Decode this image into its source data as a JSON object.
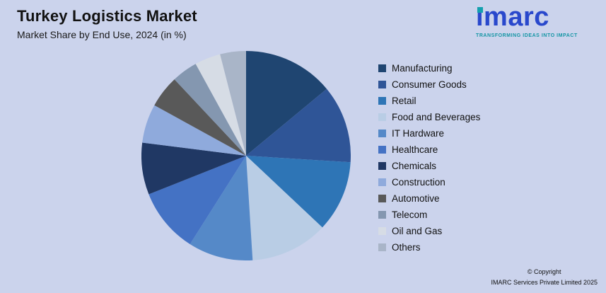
{
  "header": {
    "title": "Turkey Logistics Market",
    "subtitle": "Market Share by End Use, 2024 (in %)"
  },
  "logo": {
    "text": "imarc",
    "tagline": "TRANSFORMING IDEAS INTO IMPACT",
    "brand_blue": "#2948CC",
    "brand_teal": "#14A0AE"
  },
  "chart_data": {
    "type": "pie",
    "title": "Turkey Logistics Market",
    "subtitle": "Market Share by End Use, 2024 (in %)",
    "categories": [
      "Manufacturing",
      "Consumer Goods",
      "Retail",
      "Food and Beverages",
      "IT Hardware",
      "Healthcare",
      "Chemicals",
      "Construction",
      "Automotive",
      "Telecom",
      "Oil and Gas",
      "Others"
    ],
    "values": [
      14,
      12,
      11,
      12,
      10,
      10,
      8,
      6,
      5,
      4,
      4,
      4
    ],
    "values_note": "estimated from slice angles; no data labels shown in chart",
    "colors": [
      "#1F4571",
      "#2F5597",
      "#2E75B6",
      "#B9CDE5",
      "#5589C8",
      "#4472C4",
      "#203864",
      "#8FAADC",
      "#595959",
      "#8497B0",
      "#D6DCE5",
      "#A9B5C8"
    ],
    "start_angle_deg": -90,
    "direction": "clockwise",
    "legend_position": "right",
    "data_labels": false
  },
  "footer": {
    "copyright_line1": "© Copyright",
    "copyright_line2": "IMARC Services Private Limited 2025"
  },
  "colors": {
    "background": "#CBD3EC",
    "text": "#111111"
  }
}
